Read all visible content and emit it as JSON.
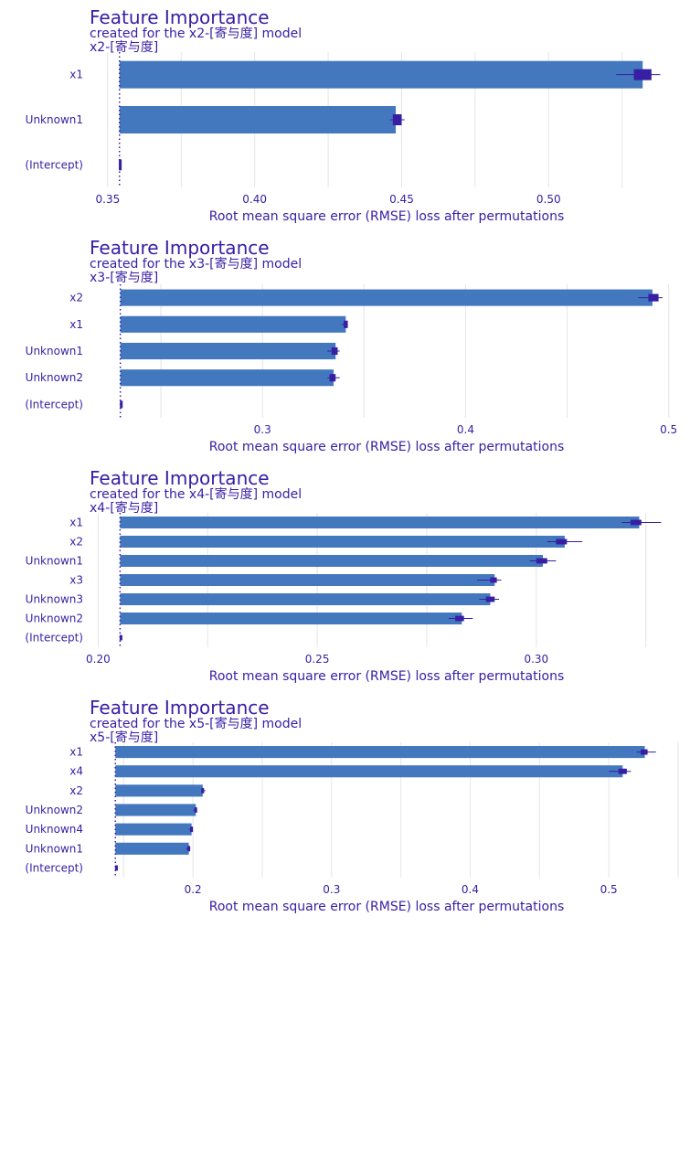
{
  "colors": {
    "text": "#371ea3",
    "bar": "#4378bf",
    "boxplot": "#371ea3",
    "grid": "#e5e5e5"
  },
  "chart_data": [
    {
      "type": "bar",
      "title": "Feature Importance",
      "subtitle": "created for the x2-[寄与度] model",
      "panel_label": "x2-[寄与度]",
      "xlabel": "Root mean square error (RMSE) loss after permutations",
      "baseline": 0.354,
      "xlim": [
        0.346,
        0.545
      ],
      "xticks": [
        0.35,
        0.4,
        0.45,
        0.5
      ],
      "xtick_labels": [
        "0.35",
        "0.40",
        "0.45",
        "0.50"
      ],
      "features": [
        {
          "name": "x1",
          "value": 0.532,
          "box": [
            0.529,
            0.535
          ],
          "whisker": [
            0.523,
            0.538
          ]
        },
        {
          "name": "Unknown1",
          "value": 0.448,
          "box": [
            0.447,
            0.45
          ],
          "whisker": [
            0.446,
            0.451
          ]
        },
        {
          "name": "(Intercept)",
          "value": 0.354,
          "box": [
            0.3538,
            0.3542
          ],
          "whisker": [
            0.3538,
            0.3542
          ]
        }
      ]
    },
    {
      "type": "bar",
      "title": "Feature Importance",
      "subtitle": "created for the x3-[寄与度] model",
      "panel_label": "x3-[寄与度]",
      "xlabel": "Root mean square error (RMSE) loss after permutations",
      "baseline": 0.23,
      "xlim": [
        0.218,
        0.506
      ],
      "xticks": [
        0.3,
        0.4,
        0.5
      ],
      "xtick_labels": [
        "0.3",
        "0.4",
        "0.5"
      ],
      "features": [
        {
          "name": "x2",
          "value": 0.492,
          "box": [
            0.49,
            0.495
          ],
          "whisker": [
            0.485,
            0.497
          ]
        },
        {
          "name": "x1",
          "value": 0.341,
          "box": [
            0.34,
            0.342
          ],
          "whisker": [
            0.339,
            0.342
          ]
        },
        {
          "name": "Unknown1",
          "value": 0.336,
          "box": [
            0.334,
            0.337
          ],
          "whisker": [
            0.332,
            0.338
          ]
        },
        {
          "name": "Unknown2",
          "value": 0.335,
          "box": [
            0.333,
            0.336
          ],
          "whisker": [
            0.332,
            0.338
          ]
        },
        {
          "name": "(Intercept)",
          "value": 0.23,
          "box": [
            0.2298,
            0.2302
          ],
          "whisker": [
            0.2298,
            0.2302
          ]
        }
      ]
    },
    {
      "type": "bar",
      "title": "Feature Importance",
      "subtitle": "created for the x4-[寄与度] model",
      "panel_label": "x4-[寄与度]",
      "xlabel": "Root mean square error (RMSE) loss after permutations",
      "baseline": 0.205,
      "xlim": [
        0.1995,
        0.333
      ],
      "xticks": [
        0.2,
        0.25,
        0.3
      ],
      "xtick_labels": [
        "0.20",
        "0.25",
        "0.30"
      ],
      "features": [
        {
          "name": "x1",
          "value": 0.3235,
          "box": [
            0.3215,
            0.324
          ],
          "whisker": [
            0.3195,
            0.3285
          ]
        },
        {
          "name": "x2",
          "value": 0.3065,
          "box": [
            0.3045,
            0.307
          ],
          "whisker": [
            0.3025,
            0.3105
          ]
        },
        {
          "name": "Unknown1",
          "value": 0.3015,
          "box": [
            0.3,
            0.3025
          ],
          "whisker": [
            0.2985,
            0.3045
          ]
        },
        {
          "name": "x3",
          "value": 0.2905,
          "box": [
            0.2895,
            0.291
          ],
          "whisker": [
            0.2865,
            0.292
          ]
        },
        {
          "name": "Unknown3",
          "value": 0.2895,
          "box": [
            0.2885,
            0.2905
          ],
          "whisker": [
            0.287,
            0.2915
          ]
        },
        {
          "name": "Unknown2",
          "value": 0.283,
          "box": [
            0.2815,
            0.2835
          ],
          "whisker": [
            0.28,
            0.2855
          ]
        },
        {
          "name": "(Intercept)",
          "value": 0.205,
          "box": [
            0.2049,
            0.2051
          ],
          "whisker": [
            0.2049,
            0.2051
          ]
        }
      ]
    },
    {
      "type": "bar",
      "title": "Feature Importance",
      "subtitle": "created for the x5-[寄与度] model",
      "panel_label": "x5-[寄与度]",
      "xlabel": "Root mean square error (RMSE) loss after permutations",
      "baseline": 0.144,
      "xlim": [
        0.13,
        0.552
      ],
      "xticks": [
        0.2,
        0.3,
        0.4,
        0.5
      ],
      "xtick_labels": [
        "0.2",
        "0.3",
        "0.4",
        "0.5"
      ],
      "features": [
        {
          "name": "x1",
          "value": 0.526,
          "box": [
            0.523,
            0.528
          ],
          "whisker": [
            0.52,
            0.534
          ]
        },
        {
          "name": "x4",
          "value": 0.51,
          "box": [
            0.507,
            0.513
          ],
          "whisker": [
            0.5,
            0.516
          ]
        },
        {
          "name": "x2",
          "value": 0.207,
          "box": [
            0.206,
            0.208
          ],
          "whisker": [
            0.206,
            0.209
          ]
        },
        {
          "name": "Unknown2",
          "value": 0.202,
          "box": [
            0.201,
            0.202
          ],
          "whisker": [
            0.2,
            0.203
          ]
        },
        {
          "name": "Unknown4",
          "value": 0.199,
          "box": [
            0.198,
            0.199
          ],
          "whisker": [
            0.197,
            0.2
          ]
        },
        {
          "name": "Unknown1",
          "value": 0.197,
          "box": [
            0.196,
            0.197
          ],
          "whisker": [
            0.195,
            0.198
          ]
        },
        {
          "name": "(Intercept)",
          "value": 0.144,
          "box": [
            0.1438,
            0.1442
          ],
          "whisker": [
            0.1438,
            0.1442
          ]
        }
      ]
    }
  ]
}
